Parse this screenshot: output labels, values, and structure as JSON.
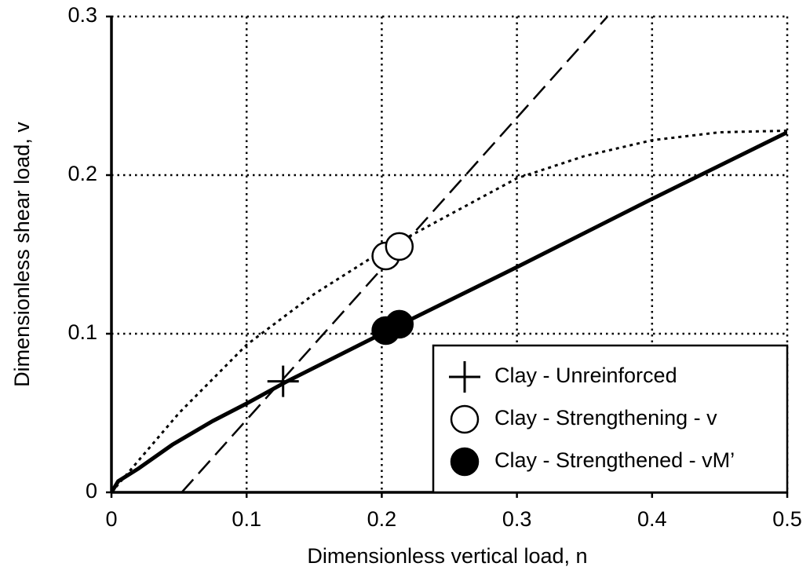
{
  "chart_data": {
    "type": "line",
    "x_label": "Dimensionless vertical load, n",
    "y_label": "Dimensionless shear load, v",
    "xlim": [
      0,
      0.5
    ],
    "xticks": [
      0,
      0.1,
      0.2,
      0.3,
      0.4,
      0.5
    ],
    "ylim": [
      0,
      0.3
    ],
    "yticks": [
      0,
      0.1,
      0.2,
      0.3
    ],
    "grid": true,
    "legend": "lower right",
    "series": [
      {
        "style": "solid",
        "color": "#000000",
        "x": [
          0,
          0.005,
          0.02,
          0.045,
          0.075,
          0.1,
          0.13,
          0.2,
          0.3,
          0.4,
          0.5
        ],
        "y": [
          0,
          0.007,
          0.015,
          0.03,
          0.045,
          0.056,
          0.07,
          0.1,
          0.142,
          0.185,
          0.227
        ]
      },
      {
        "style": "dotted",
        "color": "#000000",
        "x": [
          0,
          0.02,
          0.05,
          0.1,
          0.15,
          0.2,
          0.25,
          0.3,
          0.35,
          0.4,
          0.45,
          0.5
        ],
        "y": [
          0,
          0.02,
          0.05,
          0.093,
          0.125,
          0.152,
          0.175,
          0.198,
          0.212,
          0.222,
          0.227,
          0.228
        ]
      },
      {
        "style": "dashed",
        "color": "#000000",
        "x": [
          0.052,
          0.367
        ],
        "y": [
          0,
          0.3
        ]
      },
      {
        "name": "Clay - Unreinforced",
        "marker": "plus",
        "color": "#000000",
        "x": [
          0.127
        ],
        "y": [
          0.07
        ]
      },
      {
        "name": "Clay - Strengthening - v",
        "marker": "open",
        "color": "#000000",
        "x": [
          0.203,
          0.213
        ],
        "y": [
          0.149,
          0.155
        ]
      },
      {
        "name": "Clay - Strengthened - vM’",
        "marker": "filled",
        "color": "#000000",
        "x": [
          0.203,
          0.213
        ],
        "y": [
          0.102,
          0.106
        ]
      }
    ]
  }
}
